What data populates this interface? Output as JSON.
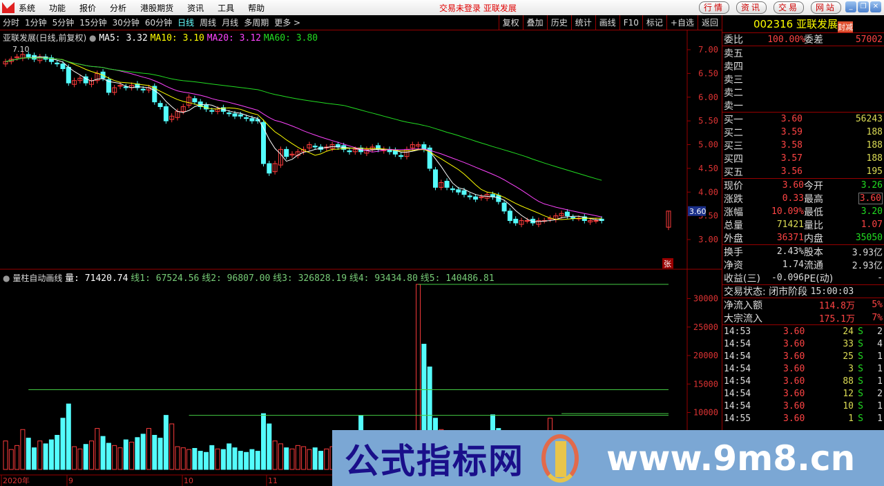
{
  "menu": {
    "items": [
      "系统",
      "功能",
      "报价",
      "分析",
      "港股期货",
      "资讯",
      "工具",
      "帮助"
    ],
    "status": "交易未登录  亚联发展",
    "buttons": [
      "行情",
      "资讯",
      "交易",
      "网站"
    ]
  },
  "toolbar": {
    "periods": [
      "分时",
      "1分钟",
      "5分钟",
      "15分钟",
      "30分钟",
      "60分钟",
      "日线",
      "周线",
      "月线",
      "多周期",
      "更多 >"
    ],
    "active": "日线",
    "right": [
      "复权",
      "叠加",
      "历史",
      "统计",
      "画线",
      "F10",
      "标记",
      "+自选",
      "返回"
    ]
  },
  "main": {
    "title": "亚联发展(日线,前复权)",
    "ma": [
      {
        "label": "MA5: 3.32",
        "color": "#ffffff"
      },
      {
        "label": "MA10: 3.10",
        "color": "#ffff00"
      },
      {
        "label": "MA20: 3.12",
        "color": "#ff44ff"
      },
      {
        "label": "MA60: 3.80",
        "color": "#22dd22"
      }
    ],
    "high_label": "7.10",
    "price_ticks": [
      "7.00",
      "6.50",
      "6.00",
      "5.50",
      "5.00",
      "4.50",
      "4.00",
      "3.50",
      "3.00"
    ],
    "current_price": "3.60",
    "limit_badge": "张"
  },
  "volume": {
    "title": "量柱自动画线",
    "vol": "量: 71420.74",
    "lines": [
      "线1: 67524.56",
      "线2: 96807.00",
      "线3: 326828.19",
      "线4: 93434.80",
      "线5: 140486.81"
    ],
    "ticks": [
      "30000",
      "25000",
      "20000",
      "15000",
      "10000"
    ]
  },
  "date_axis": [
    "2020年",
    "9",
    "10",
    "11"
  ],
  "chart_data": {
    "type": "candlestick",
    "ylim": [
      2.7,
      7.4
    ],
    "vol_ylim": [
      0,
      33000
    ],
    "closes": [
      6.75,
      6.8,
      6.85,
      6.9,
      6.85,
      6.8,
      6.85,
      6.8,
      6.75,
      6.7,
      6.6,
      6.3,
      6.35,
      6.4,
      6.3,
      6.35,
      6.5,
      6.4,
      6.1,
      6.2,
      6.25,
      6.2,
      6.25,
      6.2,
      6.15,
      6.2,
      5.9,
      5.8,
      5.5,
      5.6,
      5.7,
      5.8,
      6.0,
      5.9,
      5.8,
      5.75,
      5.7,
      5.75,
      5.7,
      5.65,
      5.6,
      5.6,
      5.55,
      5.5,
      5.5,
      4.6,
      4.4,
      4.6,
      4.9,
      4.75,
      4.8,
      4.85,
      4.9,
      5.0,
      4.95,
      4.9,
      4.95,
      5.0,
      4.95,
      4.9,
      4.85,
      4.9,
      4.85,
      4.9,
      4.95,
      4.9,
      4.9,
      4.85,
      4.8,
      4.75,
      4.9,
      5.0,
      5.0,
      4.9,
      4.5,
      4.1,
      4.2,
      4.1,
      4.05,
      4.0,
      3.95,
      3.9,
      3.85,
      3.9,
      3.95,
      3.9,
      3.8,
      3.6,
      3.4,
      3.35,
      3.4,
      3.4,
      3.35,
      3.4,
      3.4,
      3.45,
      3.5,
      3.55,
      3.5,
      3.45,
      3.45,
      3.4,
      3.4,
      3.4,
      3.4
    ],
    "volumes": [
      5000,
      3500,
      4200,
      7000,
      5500,
      3800,
      5000,
      4500,
      5200,
      6000,
      9000,
      11500,
      4000,
      3600,
      4400,
      5000,
      7200,
      5800,
      4600,
      4200,
      3800,
      5200,
      4800,
      5600,
      6200,
      7200,
      6000,
      5500,
      9500,
      8000,
      4000,
      3800,
      3500,
      3700,
      3200,
      3000,
      4200,
      3600,
      3500,
      4500,
      3800,
      3200,
      3000,
      3500,
      3200,
      9800,
      8000,
      5000,
      4500,
      3800,
      3600,
      4200,
      4000,
      3500,
      3800,
      3200,
      3600,
      4000,
      3400,
      3600,
      5000,
      4500,
      9500,
      4800,
      3500,
      3200,
      3000,
      3600,
      3800,
      3400,
      3200,
      4400,
      32500,
      22000,
      18000,
      9000,
      7000,
      5000,
      4200,
      3600,
      4600,
      3200,
      3400,
      3600,
      4800,
      9600,
      7200,
      5400,
      4800,
      4200,
      3600,
      3200,
      4000,
      4600,
      3800,
      9000,
      5200,
      4000,
      3800,
      3600,
      3200,
      3000,
      3400,
      4000,
      5200
    ],
    "last_bar": {
      "open": 3.26,
      "high": 3.6,
      "low": 3.2,
      "close": 3.6,
      "volume": 3200
    },
    "volume_levels": [
      {
        "value": 32500,
        "from": 72
      },
      {
        "value": 14000,
        "from": 4
      },
      {
        "value": 9500,
        "from": 32
      },
      {
        "value": 9800,
        "from": 97
      }
    ]
  },
  "quote": {
    "code": "002316",
    "name": "亚联发展",
    "tag": "封减",
    "weibi": {
      "label": "委比",
      "value": "100.00%",
      "label2": "委差",
      "value2": "57002"
    },
    "sell": [
      {
        "label": "卖五"
      },
      {
        "label": "卖四"
      },
      {
        "label": "卖三"
      },
      {
        "label": "卖二"
      },
      {
        "label": "卖一"
      }
    ],
    "buy": [
      {
        "label": "买一",
        "price": "3.60",
        "vol": "56243"
      },
      {
        "label": "买二",
        "price": "3.59",
        "vol": "188"
      },
      {
        "label": "买三",
        "price": "3.58",
        "vol": "188"
      },
      {
        "label": "买四",
        "price": "3.57",
        "vol": "188"
      },
      {
        "label": "买五",
        "price": "3.56",
        "vol": "195"
      }
    ],
    "stats": [
      [
        "现价",
        "3.60",
        "r",
        "今开",
        "3.26",
        "g"
      ],
      [
        "涨跌",
        "0.33",
        "r",
        "最高",
        "3.60",
        "r"
      ],
      [
        "涨幅",
        "10.09%",
        "r",
        "最低",
        "3.20",
        "g"
      ],
      [
        "总量",
        "71421",
        "y",
        "量比",
        "1.07",
        "r"
      ],
      [
        "外盘",
        "36371",
        "r",
        "内盘",
        "35050",
        "g"
      ]
    ],
    "fund": [
      [
        "换手",
        "2.43%",
        "股本",
        "3.93亿"
      ],
      [
        "净资",
        "1.74",
        "流通",
        "2.93亿"
      ],
      [
        "收益(三)",
        "-0.096",
        "PE(动)",
        "-"
      ]
    ],
    "trade_status": "交易状态: 闭市阶段",
    "trade_time": "15:00:03",
    "flow": [
      [
        "净流入额",
        "114.8万",
        "5%"
      ],
      [
        "大宗流入",
        "175.1万",
        "7%"
      ]
    ],
    "ticks": [
      [
        "14:53",
        "3.60",
        "24",
        "S",
        "2"
      ],
      [
        "14:54",
        "3.60",
        "33",
        "S",
        "4"
      ],
      [
        "14:54",
        "3.60",
        "25",
        "S",
        "1"
      ],
      [
        "14:54",
        "3.60",
        "3",
        "S",
        "1"
      ],
      [
        "14:54",
        "3.60",
        "88",
        "S",
        "1"
      ],
      [
        "14:54",
        "3.60",
        "12",
        "S",
        "2"
      ],
      [
        "14:54",
        "3.60",
        "10",
        "S",
        "1"
      ],
      [
        "14:55",
        "3.60",
        "1",
        "S",
        "1"
      ]
    ]
  },
  "watermark": {
    "cn": "公式指标网",
    "url": "www.9m8.cn"
  }
}
